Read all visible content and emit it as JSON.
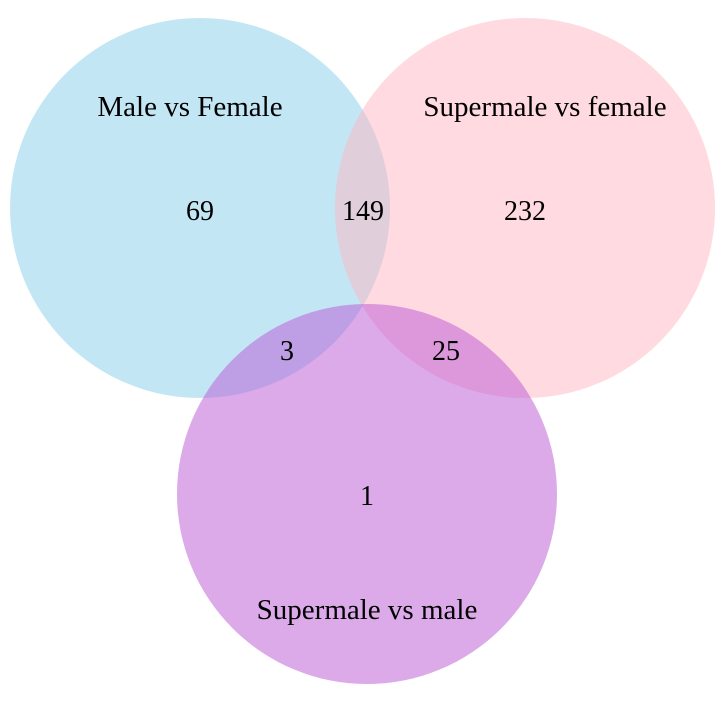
{
  "venn": {
    "sets": [
      {
        "label": "Male vs Female",
        "color": "#87CEEB"
      },
      {
        "label": "Supermale vs female",
        "color": "#FFB6C1"
      },
      {
        "label": "Supermale vs male",
        "color": "#BA55D3"
      }
    ],
    "regions": {
      "only_male_vs_female": "69",
      "male_vs_female_and_supermale_vs_female": "149",
      "only_supermale_vs_female": "232",
      "male_vs_female_and_supermale_vs_male": "3",
      "supermale_vs_female_and_supermale_vs_male": "25",
      "only_supermale_vs_male": "1"
    }
  }
}
